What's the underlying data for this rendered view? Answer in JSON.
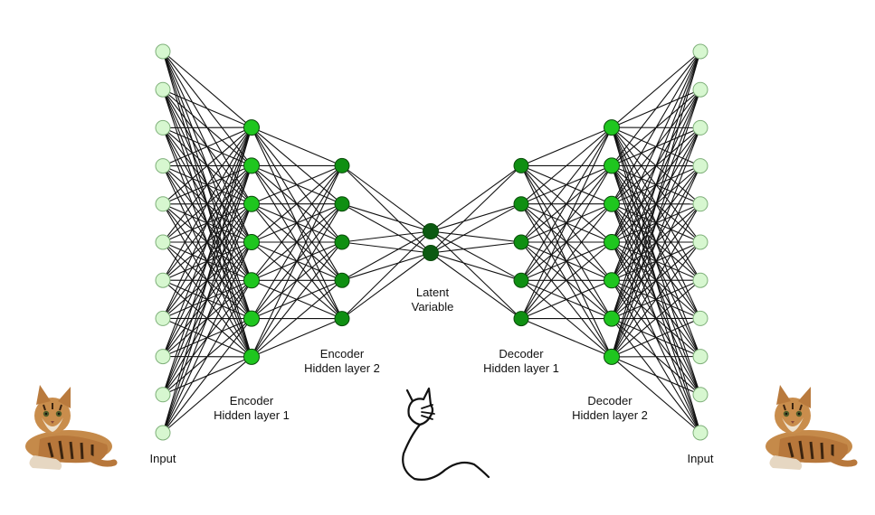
{
  "labels": {
    "input_left": "Input",
    "input_right": "Input",
    "enc_h1": [
      "Encoder",
      "Hidden layer 1"
    ],
    "enc_h2": [
      "Encoder",
      "Hidden layer 2"
    ],
    "latent": [
      "Latent",
      "Variable"
    ],
    "dec_h1": [
      "Decoder",
      "Hidden layer 1"
    ],
    "dec_h2": [
      "Decoder",
      "Hidden layer 2"
    ]
  },
  "network": {
    "layer_sizes": [
      11,
      7,
      5,
      2,
      5,
      7,
      11
    ],
    "connections": "fully-connected"
  },
  "colors": {
    "input_node": "#d7f7d0",
    "input_stroke": "#7fb07a",
    "hidden_outer_node": "#1fc61f",
    "hidden_inner_node": "#0f8f12",
    "latent_node": "#0c5a12",
    "node_stroke": "#0a4a0a",
    "edge": "#111111"
  }
}
